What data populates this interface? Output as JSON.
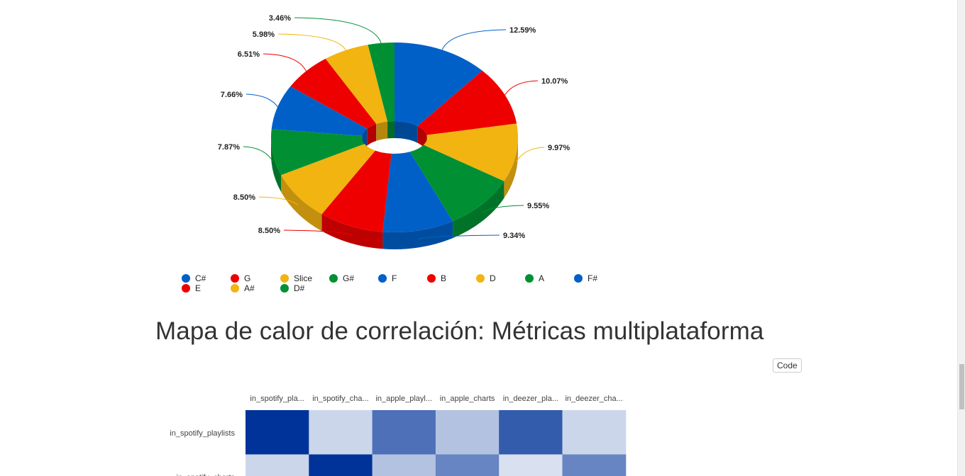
{
  "chart_data": [
    {
      "type": "pie",
      "variant": "3d-donut",
      "slices": [
        {
          "label": "C#",
          "value": 12.59,
          "value_label": "12.59%",
          "color": "#0060c8"
        },
        {
          "label": "G",
          "value": 10.07,
          "value_label": "10.07%",
          "color": "#ee0000"
        },
        {
          "label": "Slice",
          "value": 9.97,
          "value_label": "9.97%",
          "color": "#f2b411"
        },
        {
          "label": "G#",
          "value": 9.55,
          "value_label": "9.55%",
          "color": "#009033"
        },
        {
          "label": "F",
          "value": 9.34,
          "value_label": "9.34%",
          "color": "#0060c8"
        },
        {
          "label": "B",
          "value": 8.5,
          "value_label": "8.50%",
          "color": "#ee0000"
        },
        {
          "label": "D",
          "value": 8.5,
          "value_label": "8.50%",
          "color": "#f2b411"
        },
        {
          "label": "A",
          "value": 7.87,
          "value_label": "7.87%",
          "color": "#009033"
        },
        {
          "label": "F#",
          "value": 7.66,
          "value_label": "7.66%",
          "color": "#0060c8"
        },
        {
          "label": "E",
          "value": 6.51,
          "value_label": "6.51%",
          "color": "#ee0000"
        },
        {
          "label": "A#",
          "value": 5.98,
          "value_label": "5.98%",
          "color": "#f2b411"
        },
        {
          "label": "D#",
          "value": 3.46,
          "value_label": "3.46%",
          "color": "#009033"
        }
      ],
      "legend": [
        "C#",
        "G",
        "Slice",
        "G#",
        "F",
        "B",
        "D",
        "A",
        "F#",
        "E",
        "A#",
        "D#"
      ],
      "legend_position": "bottom"
    },
    {
      "type": "heatmap",
      "title": "Mapa de calor de correlación: Métricas multiplataforma",
      "columns": [
        "in_spotify_pla...",
        "in_spotify_cha...",
        "in_apple_playl...",
        "in_apple_charts",
        "in_deezer_pla...",
        "in_deezer_cha..."
      ],
      "rows": [
        "in_spotify_playlists",
        "in_spotify_charts"
      ],
      "values": [
        [
          1.0,
          0.2,
          0.7,
          0.3,
          0.8,
          0.2
        ],
        [
          0.2,
          1.0,
          0.3,
          0.6,
          0.15,
          0.6
        ]
      ],
      "color_low": "#ffffff",
      "color_high": "#003399"
    }
  ],
  "section_title": "Mapa de calor de correlación: Métricas multiplataforma",
  "code_button_label": "Code"
}
